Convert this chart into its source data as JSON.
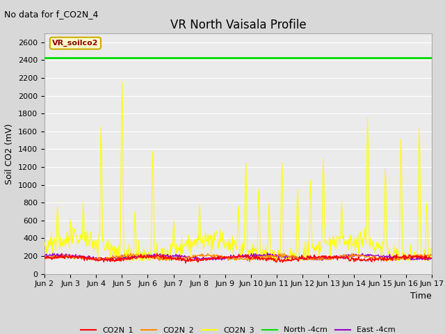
{
  "title": "VR North Vaisala Profile",
  "no_data_text": "No data for f_CO2N_4",
  "ylabel": "Soil CO2 (mV)",
  "xlabel": "Time",
  "ylim": [
    0,
    2700
  ],
  "yticks": [
    0,
    200,
    400,
    600,
    800,
    1000,
    1200,
    1400,
    1600,
    1800,
    2000,
    2200,
    2400,
    2600
  ],
  "xtick_labels": [
    "Jun 2",
    "Jun 3",
    "Jun 4",
    "Jun 5",
    "Jun 6",
    "Jun 7",
    "Jun 8",
    "Jun 9",
    "Jun 10",
    "Jun 11",
    "Jun 12",
    "Jun 13",
    "Jun 14",
    "Jun 15",
    "Jun 16",
    "Jun 17"
  ],
  "bg_color": "#d8d8d8",
  "plot_bg_color": "#ebebeb",
  "annotation_box_text": "VR_soilco2",
  "annotation_box_bg": "#ffffcc",
  "annotation_box_border": "#ccaa00",
  "annotation_text_color": "#8b0000",
  "north_4cm_value": 2430,
  "colors": {
    "CO2N_1": "#ff0000",
    "CO2N_2": "#ff8800",
    "CO2N_3": "#ffff00",
    "North_4cm": "#00dd00",
    "East_4cm": "#9900cc"
  },
  "legend_labels": [
    "CO2N_1",
    "CO2N_2",
    "CO2N_3",
    "North -4cm",
    "East -4cm"
  ],
  "title_fontsize": 12,
  "axis_fontsize": 9,
  "tick_fontsize": 8,
  "no_data_fontsize": 9
}
